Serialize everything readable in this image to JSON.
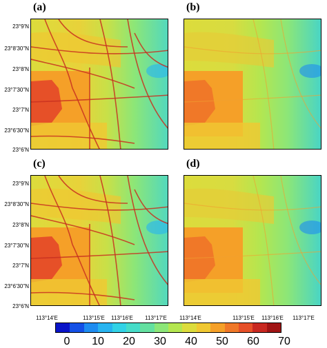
{
  "panels": [
    {
      "label": "(a)",
      "variant": "full"
    },
    {
      "label": "(b)",
      "variant": "smooth"
    },
    {
      "label": "(c)",
      "variant": "full"
    },
    {
      "label": "(d)",
      "variant": "smooth"
    }
  ],
  "y_ticks": [
    "23°9'N",
    "23°8'30\"N",
    "23°8'N",
    "23°7'30\"N",
    "23°7'N",
    "23°6'30\"N",
    "23°6'N"
  ],
  "x_ticks": [
    "113°14'E",
    "113°15'E",
    "113°16'E",
    "113°17'E"
  ],
  "colorbar": {
    "labels": [
      "0",
      "10",
      "20",
      "30",
      "40",
      "50",
      "60",
      "70"
    ],
    "min": 0,
    "max": 70,
    "colors": [
      "#0a14c8",
      "#1450e6",
      "#1e8cf0",
      "#28b4f0",
      "#32d2e6",
      "#46dcc8",
      "#64e0a0",
      "#8ce678",
      "#b4e650",
      "#dcdc3c",
      "#f0c832",
      "#f5a028",
      "#f07828",
      "#e65028",
      "#c82820",
      "#a01414"
    ]
  }
}
